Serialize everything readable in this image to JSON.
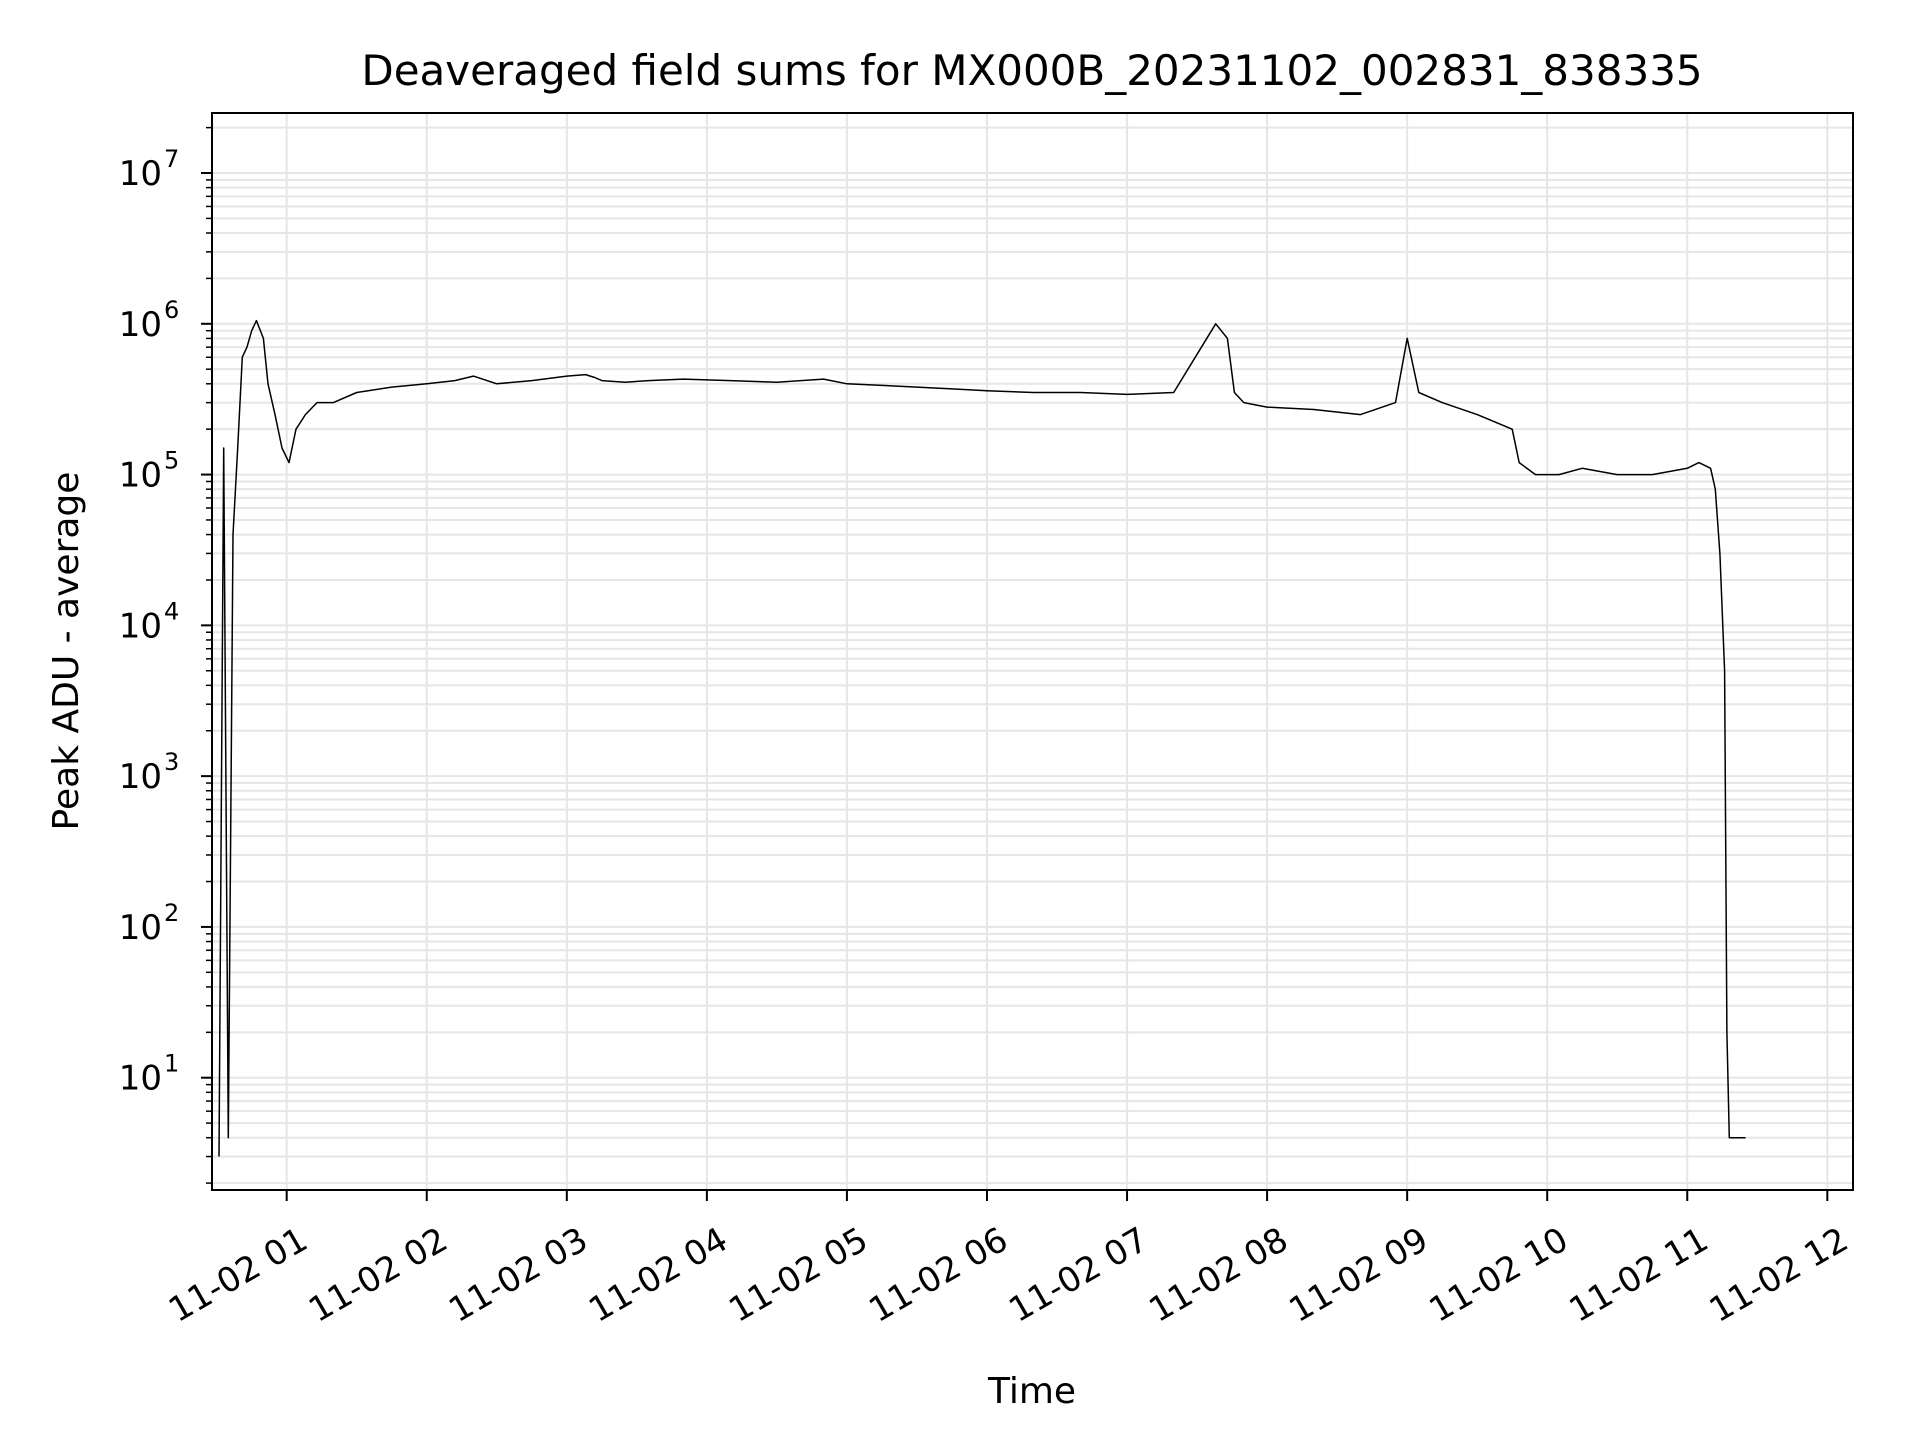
{
  "chart_data": {
    "type": "line",
    "title": "Deaveraged field sums for MX000B_20231102_002831_838335",
    "xlabel": "Time",
    "ylabel": "Peak ADU - average",
    "yscale": "log",
    "ylim": [
      1.8,
      25000000
    ],
    "xlim": [
      "11-02 00:28",
      "11-02 12:11"
    ],
    "grid": true,
    "x_ticks": [
      "11-02 01",
      "11-02 02",
      "11-02 03",
      "11-02 04",
      "11-02 05",
      "11-02 06",
      "11-02 07",
      "11-02 08",
      "11-02 09",
      "11-02 10",
      "11-02 11",
      "11-02 12"
    ],
    "y_ticks": [
      {
        "base": "10",
        "exp": "1",
        "value": 10
      },
      {
        "base": "10",
        "exp": "2",
        "value": 100
      },
      {
        "base": "10",
        "exp": "3",
        "value": 1000
      },
      {
        "base": "10",
        "exp": "4",
        "value": 10000
      },
      {
        "base": "10",
        "exp": "5",
        "value": 100000
      },
      {
        "base": "10",
        "exp": "6",
        "value": 1000000
      },
      {
        "base": "10",
        "exp": "7",
        "value": 10000000
      }
    ],
    "line_color": "#000000",
    "grid_color": "#e6e6e6",
    "series": [
      {
        "x": [
          "00:31",
          "00:33",
          "00:35",
          "00:37",
          "00:39",
          "00:41",
          "00:43",
          "00:45",
          "00:47",
          "00:50",
          "00:52",
          "00:55",
          "00:58",
          "01:01",
          "01:04",
          "01:08",
          "01:13",
          "01:20",
          "01:30",
          "01:45",
          "02:00",
          "02:12",
          "02:20",
          "02:30",
          "02:45",
          "02:50",
          "03:00",
          "03:08",
          "03:12",
          "03:15",
          "03:25",
          "03:35",
          "03:50",
          "04:10",
          "04:30",
          "04:50",
          "05:00",
          "05:15",
          "05:30",
          "05:45",
          "06:00",
          "06:20",
          "06:40",
          "07:00",
          "07:20",
          "07:38",
          "07:43",
          "07:46",
          "07:50",
          "08:00",
          "08:20",
          "08:40",
          "08:55",
          "09:00",
          "09:05",
          "09:15",
          "09:30",
          "09:45",
          "09:48",
          "09:55",
          "10:05",
          "10:15",
          "10:30",
          "10:45",
          "11:00",
          "11:05",
          "11:10",
          "11:12",
          "11:14",
          "11:16",
          "11:17",
          "11:18",
          "11:20",
          "11:25"
        ],
        "y": [
          3,
          150000,
          4,
          40000,
          150000,
          600000,
          700000,
          900000,
          1050000,
          800000,
          400000,
          250000,
          150000,
          120000,
          200000,
          250000,
          300000,
          300000,
          350000,
          380000,
          400000,
          420000,
          450000,
          400000,
          420000,
          430000,
          450000,
          460000,
          440000,
          420000,
          410000,
          420000,
          430000,
          420000,
          410000,
          430000,
          400000,
          390000,
          380000,
          370000,
          360000,
          350000,
          350000,
          340000,
          350000,
          1000000,
          800000,
          350000,
          300000,
          280000,
          270000,
          250000,
          300000,
          800000,
          350000,
          300000,
          250000,
          200000,
          120000,
          100000,
          100000,
          110000,
          100000,
          100000,
          110000,
          120000,
          110000,
          80000,
          30000,
          5000,
          20,
          4,
          4,
          4
        ]
      }
    ]
  }
}
